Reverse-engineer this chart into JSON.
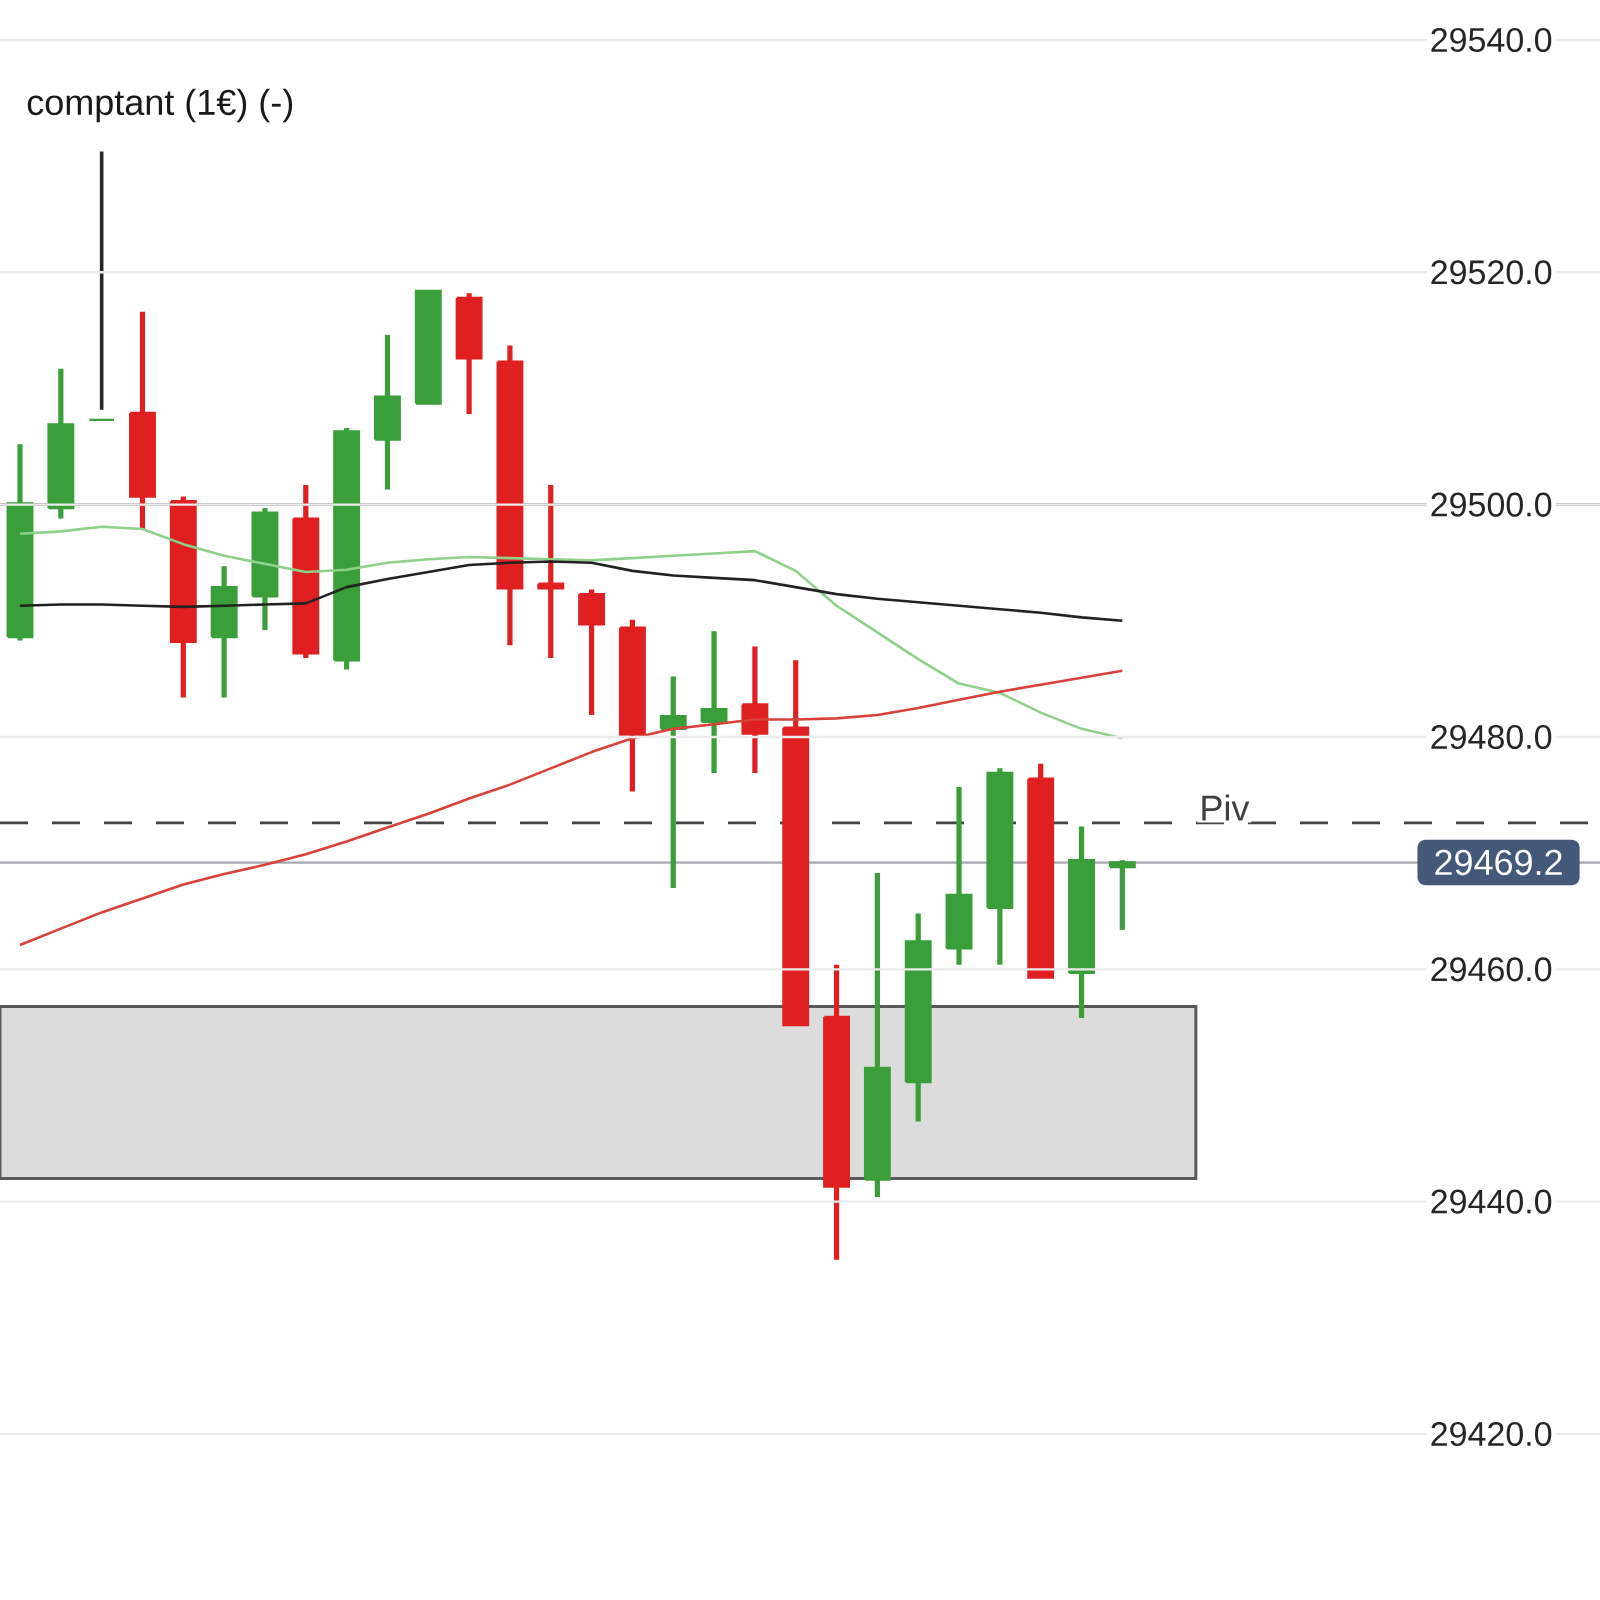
{
  "chart_data": {
    "type": "candlestick",
    "categories": [
      null,
      null,
      null,
      null,
      null,
      null,
      null,
      null,
      null,
      null,
      null,
      null,
      null,
      null,
      null,
      null,
      null,
      null,
      null,
      null,
      null,
      null,
      null,
      null,
      null,
      null,
      null,
      null
    ],
    "ohlc": [
      [
        29488.6,
        29505.2,
        29488.3,
        29500.1
      ],
      [
        29499.7,
        29511.7,
        29498.8,
        29506.9
      ],
      [
        29507.3,
        29507.3,
        29507.3,
        29507.3
      ],
      [
        29507.9,
        29516.6,
        29497.9,
        29500.7
      ],
      [
        29500.3,
        29500.7,
        29483.4,
        29488.2
      ],
      [
        29488.6,
        29494.7,
        29483.4,
        29492.9
      ],
      [
        29492.1,
        29499.7,
        29489.2,
        29499.3
      ],
      [
        29498.8,
        29501.7,
        29486.8,
        29487.2
      ],
      [
        29486.6,
        29506.6,
        29485.8,
        29506.3
      ],
      [
        29505.6,
        29514.6,
        29501.3,
        29509.3
      ],
      [
        29508.7,
        29518.4,
        29508.7,
        29518.4
      ],
      [
        29517.8,
        29518.2,
        29507.8,
        29512.6
      ],
      [
        29512.3,
        29513.7,
        29487.9,
        29492.8
      ],
      [
        29493.2,
        29501.7,
        29486.8,
        29492.8
      ],
      [
        29492.3,
        29492.7,
        29481.9,
        29489.7
      ],
      [
        29489.4,
        29490.1,
        29475.3,
        29480.2
      ],
      [
        29480.7,
        29485.2,
        29467.0,
        29481.8
      ],
      [
        29481.3,
        29489.1,
        29476.9,
        29482.4
      ],
      [
        29482.8,
        29487.8,
        29476.9,
        29480.3
      ],
      [
        29480.8,
        29486.6,
        29455.2,
        29455.2
      ],
      [
        29455.9,
        29460.4,
        29435.0,
        29441.3
      ],
      [
        29441.9,
        29468.3,
        29440.4,
        29451.5
      ],
      [
        29450.3,
        29464.8,
        29446.9,
        29462.4
      ],
      [
        29461.8,
        29475.7,
        29460.4,
        29466.4
      ],
      [
        29465.3,
        29477.3,
        29460.4,
        29476.9
      ],
      [
        29476.4,
        29477.7,
        29459.3,
        29459.3
      ],
      [
        29459.7,
        29472.3,
        29455.8,
        29469.4
      ],
      [
        29468.8,
        29469.4,
        29463.4,
        29469.2
      ]
    ],
    "colors": [
      "#3a9e3a",
      "#3a9e3a",
      "#3a9e3a",
      "#e02020",
      "#e02020",
      "#3a9e3a",
      "#3a9e3a",
      "#e02020",
      "#3a9e3a",
      "#3a9e3a",
      "#3a9e3a",
      "#e02020",
      "#e02020",
      "#e02020",
      "#e02020",
      "#e02020",
      "#3a9e3a",
      "#3a9e3a",
      "#e02020",
      "#e02020",
      "#e02020",
      "#3a9e3a",
      "#3a9e3a",
      "#3a9e3a",
      "#3a9e3a",
      "#e02020",
      "#3a9e3a",
      "#3a9e3a"
    ],
    "series": [
      {
        "type": "line",
        "color": "#8fd08a",
        "values": [
          29497.5,
          29497.7,
          29498.1,
          29497.9,
          29496.6,
          29495.6,
          29494.9,
          29494.2,
          29494.4,
          29495.0,
          29495.3,
          29495.5,
          29495.4,
          29495.3,
          29495.2,
          29495.4,
          29495.6,
          29495.8,
          29496.0,
          29494.3,
          29491.3,
          29489.0,
          29486.7,
          29484.6,
          29483.8,
          29482.1,
          29480.7,
          29479.9
        ]
      },
      {
        "type": "line",
        "color": "#222222",
        "values": [
          29491.3,
          29491.4,
          29491.4,
          29491.3,
          29491.2,
          29491.3,
          29491.4,
          29491.5,
          29492.9,
          29493.6,
          29494.2,
          29494.8,
          29495.0,
          29495.1,
          29495.0,
          29494.3,
          29493.9,
          29493.7,
          29493.5,
          29492.9,
          29492.3,
          29491.9,
          29491.6,
          29491.3,
          29491.0,
          29490.7,
          29490.3,
          29490.0
        ]
      },
      {
        "type": "line",
        "color": "#d9413a",
        "values": [
          29462.1,
          29463.5,
          29464.9,
          29466.1,
          29467.3,
          29468.2,
          29469.0,
          29469.9,
          29471.0,
          29472.2,
          29473.4,
          29474.7,
          29475.9,
          29477.3,
          29478.7,
          29479.9,
          29480.7,
          29481.1,
          29481.5,
          29481.5,
          29481.6,
          29481.9,
          29482.5,
          29483.2,
          29483.9,
          29484.5,
          29485.1,
          29485.7
        ]
      }
    ],
    "ylim": [
      29420,
      29540
    ],
    "yticks": [
      {
        "value": 29420,
        "label": "29420.0"
      },
      {
        "value": 29440,
        "label": "29440.0"
      },
      {
        "value": 29460,
        "label": "29460.0"
      },
      {
        "value": 29480,
        "label": "29480.0"
      },
      {
        "value": 29500,
        "label": "29500.0"
      },
      {
        "value": 29520,
        "label": "29520.0"
      },
      {
        "value": 29540,
        "label": "29540.0"
      }
    ],
    "tick_labels": "y",
    "grid": "y",
    "ref_lines": [
      {
        "axis": "y",
        "value": 29500,
        "label": null,
        "color": "#555555",
        "line_style": "solid"
      },
      {
        "axis": "y",
        "value": 29472.6,
        "label": "Piv",
        "color": "#444444",
        "line_style": "dashed"
      },
      {
        "axis": "y",
        "value": 29469.2,
        "label": "29469.2",
        "color": "#a8a8b0",
        "line_style": "solid"
      }
    ],
    "bands": [
      {
        "axis": "y",
        "from": 29442.0,
        "to": 29456.8,
        "label": null,
        "color": "#dcdcdc"
      }
    ],
    "annotations": [
      "comptant (1€) (-)"
    ]
  }
}
